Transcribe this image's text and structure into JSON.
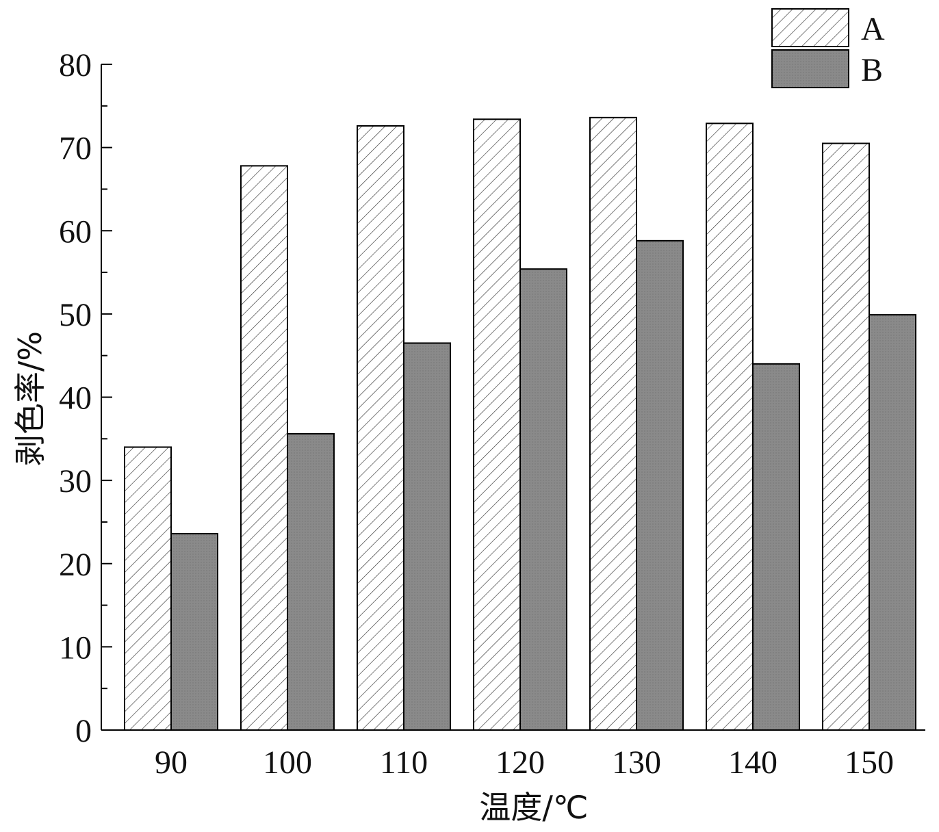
{
  "chart_data": {
    "type": "bar",
    "title": "",
    "xlabel": "温度/℃",
    "ylabel": "剥色率/%",
    "categories": [
      "90",
      "100",
      "110",
      "120",
      "130",
      "140",
      "150"
    ],
    "series": [
      {
        "name": "A",
        "values": [
          34.0,
          67.8,
          72.6,
          73.4,
          73.6,
          72.9,
          70.5
        ],
        "pattern": "hatch",
        "color": "#ffffff"
      },
      {
        "name": "B",
        "values": [
          23.6,
          35.6,
          46.5,
          55.4,
          58.8,
          44.0,
          49.9
        ],
        "pattern": "dotted",
        "color": "#8c8c8c"
      }
    ],
    "ylim": [
      0,
      80
    ],
    "yticks": [
      "0",
      "10",
      "20",
      "30",
      "40",
      "50",
      "60",
      "70",
      "80"
    ],
    "legend": "top-right",
    "grid": false
  }
}
